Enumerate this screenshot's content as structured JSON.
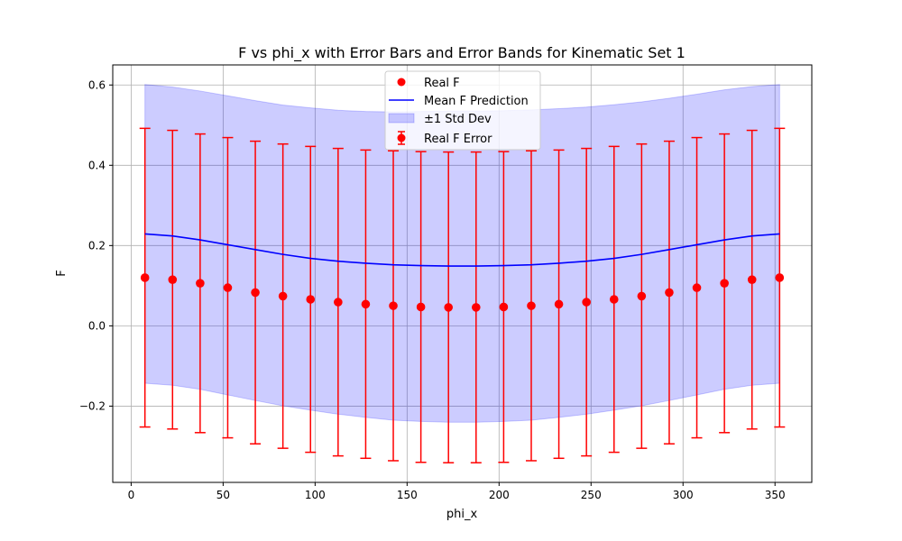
{
  "chart_data": {
    "type": "scatter",
    "title": "F vs phi_x with Error Bars and Error Bands for Kinematic Set 1",
    "xlabel": "phi_x",
    "ylabel": "F",
    "xlim": [
      -10,
      370
    ],
    "ylim": [
      -0.39,
      0.65
    ],
    "xticks": [
      0,
      50,
      100,
      150,
      200,
      250,
      300,
      350
    ],
    "yticks": [
      -0.2,
      0.0,
      0.2,
      0.4,
      0.6
    ],
    "xtick_labels": [
      "0",
      "50",
      "100",
      "150",
      "200",
      "250",
      "300",
      "350"
    ],
    "ytick_labels": [
      "−0.2",
      "0.0",
      "0.2",
      "0.4",
      "0.6"
    ],
    "grid": true,
    "legend_position": "top-center",
    "x": [
      7.5,
      22.5,
      37.5,
      52.5,
      67.5,
      82.5,
      97.5,
      112.5,
      127.5,
      142.5,
      157.5,
      172.5,
      187.5,
      202.5,
      217.5,
      232.5,
      247.5,
      262.5,
      277.5,
      292.5,
      307.5,
      322.5,
      337.5,
      352.5
    ],
    "series": [
      {
        "name": "Real F",
        "kind": "scatter",
        "color": "#ff0000",
        "values": [
          0.12,
          0.115,
          0.106,
          0.095,
          0.083,
          0.074,
          0.066,
          0.059,
          0.054,
          0.05,
          0.047,
          0.046,
          0.046,
          0.047,
          0.05,
          0.054,
          0.059,
          0.066,
          0.074,
          0.083,
          0.095,
          0.106,
          0.115,
          0.12
        ]
      },
      {
        "name": "Mean F Prediction",
        "kind": "line",
        "color": "#0000ff",
        "values": [
          0.229,
          0.224,
          0.214,
          0.202,
          0.19,
          0.178,
          0.168,
          0.161,
          0.156,
          0.152,
          0.15,
          0.149,
          0.149,
          0.15,
          0.152,
          0.156,
          0.161,
          0.168,
          0.178,
          0.19,
          0.202,
          0.214,
          0.224,
          0.229
        ]
      },
      {
        "name": "±1 Std Dev",
        "kind": "band",
        "color": "#0000ff",
        "upper": [
          0.601,
          0.595,
          0.585,
          0.573,
          0.561,
          0.55,
          0.543,
          0.537,
          0.534,
          0.533,
          0.534,
          0.535,
          0.535,
          0.536,
          0.538,
          0.541,
          0.545,
          0.551,
          0.558,
          0.567,
          0.577,
          0.588,
          0.596,
          0.601
        ],
        "lower": [
          -0.143,
          -0.148,
          -0.158,
          -0.172,
          -0.186,
          -0.199,
          -0.21,
          -0.22,
          -0.228,
          -0.235,
          -0.238,
          -0.24,
          -0.24,
          -0.238,
          -0.235,
          -0.228,
          -0.22,
          -0.21,
          -0.199,
          -0.186,
          -0.172,
          -0.158,
          -0.148,
          -0.143
        ]
      },
      {
        "name": "Real F Error",
        "kind": "errorbar",
        "color": "#ff0000",
        "errors": [
          0.372,
          0.372,
          0.372,
          0.374,
          0.377,
          0.379,
          0.381,
          0.383,
          0.384,
          0.386,
          0.387,
          0.387,
          0.387,
          0.387,
          0.386,
          0.384,
          0.383,
          0.381,
          0.379,
          0.377,
          0.374,
          0.372,
          0.372,
          0.372
        ]
      }
    ]
  }
}
